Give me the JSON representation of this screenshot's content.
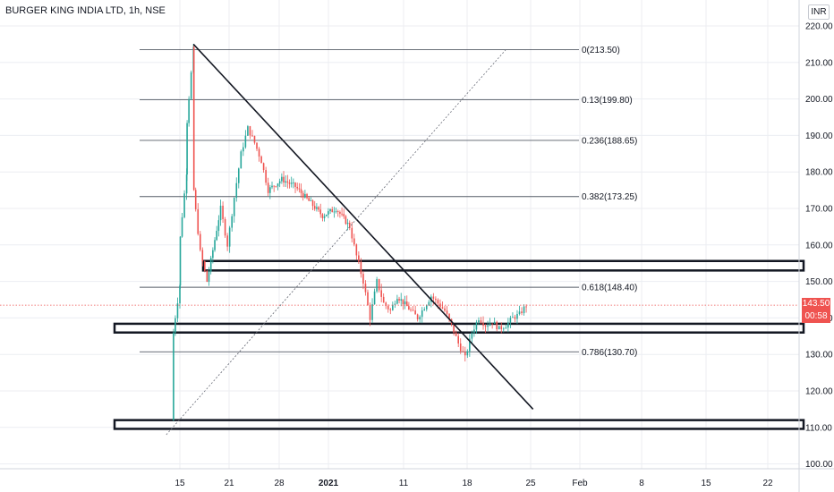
{
  "header": {
    "title": "BURGER KING INDIA LTD, 1h, NSE",
    "currency": "INR"
  },
  "badges": {
    "last_price": "143.50",
    "countdown": "00:58",
    "color": "#ef5350"
  },
  "colors": {
    "up": "#26a69a",
    "down": "#ef5350",
    "lines": "#131722",
    "grid": "#eceef2"
  },
  "chart_data": {
    "type": "candlestick",
    "title": "BURGER KING INDIA LTD, 1h, NSE",
    "ylabel": "INR",
    "ylim": [
      97.5,
      222.5
    ],
    "y_ticks": [
      "220.00",
      "210.00",
      "200.00",
      "190.00",
      "180.00",
      "170.00",
      "160.00",
      "150.00",
      "140.00",
      "130.00",
      "120.00",
      "110.00",
      "100.00"
    ],
    "x_ticks": [
      "15",
      "21",
      "28",
      "2021",
      "11",
      "18",
      "25",
      "Feb",
      "8",
      "15",
      "22"
    ],
    "fibonacci": [
      {
        "label": "0(213.50)",
        "value": 213.5
      },
      {
        "label": "0.13(199.80)",
        "value": 199.8
      },
      {
        "label": "0.236(188.65)",
        "value": 188.65
      },
      {
        "label": "0.382(173.25)",
        "value": 173.25
      },
      {
        "label": "0.618(148.40)",
        "value": 148.4
      },
      {
        "label": "0.786(130.70)",
        "value": 130.7
      }
    ],
    "zones": [
      {
        "from": 153.0,
        "to": 155.6
      },
      {
        "from": 136.0,
        "to": 138.4
      },
      {
        "from": 109.6,
        "to": 112.0
      }
    ],
    "trendline": {
      "from": {
        "x": "Dec 17",
        "y": 215.0
      },
      "to": {
        "x": "Feb 5",
        "y": 115.0
      }
    },
    "fib_diagonal": {
      "from": {
        "x": "Dec 13",
        "y": 108.0
      },
      "to": {
        "x": "Feb 1",
        "y": 213.5
      }
    },
    "price_path": [
      {
        "x": "Dec 14",
        "y": 112
      },
      {
        "x": "Dec 14",
        "y": 136
      },
      {
        "x": "Dec 15",
        "y": 149
      },
      {
        "x": "Dec 15",
        "y": 162
      },
      {
        "x": "Dec 16",
        "y": 180
      },
      {
        "x": "Dec 16",
        "y": 194
      },
      {
        "x": "Dec 17",
        "y": 213.5
      },
      {
        "x": "Dec 17",
        "y": 175
      },
      {
        "x": "Dec 18",
        "y": 158
      },
      {
        "x": "Dec 19",
        "y": 150
      },
      {
        "x": "Dec 21",
        "y": 170
      },
      {
        "x": "Dec 22",
        "y": 160
      },
      {
        "x": "Dec 23",
        "y": 173
      },
      {
        "x": "Dec 24",
        "y": 185
      },
      {
        "x": "Dec 25",
        "y": 192
      },
      {
        "x": "Dec 26",
        "y": 188
      },
      {
        "x": "Dec 27",
        "y": 183
      },
      {
        "x": "Dec 28",
        "y": 175
      },
      {
        "x": "Dec 30",
        "y": 178
      },
      {
        "x": "Jan 1",
        "y": 176
      },
      {
        "x": "Jan 3",
        "y": 172
      },
      {
        "x": "Jan 5",
        "y": 168
      },
      {
        "x": "Jan 7",
        "y": 170
      },
      {
        "x": "Jan 9",
        "y": 165
      },
      {
        "x": "Jan 10",
        "y": 157
      },
      {
        "x": "Jan 11",
        "y": 150
      },
      {
        "x": "Jan 12",
        "y": 140
      },
      {
        "x": "Jan 13",
        "y": 150
      },
      {
        "x": "Jan 14",
        "y": 144
      },
      {
        "x": "Jan 15",
        "y": 142
      },
      {
        "x": "Jan 16",
        "y": 146
      },
      {
        "x": "Jan 18",
        "y": 142
      },
      {
        "x": "Jan 19",
        "y": 140
      },
      {
        "x": "Jan 20",
        "y": 143
      },
      {
        "x": "Jan 21",
        "y": 146
      },
      {
        "x": "Jan 22",
        "y": 144
      },
      {
        "x": "Jan 23",
        "y": 142
      },
      {
        "x": "Jan 24",
        "y": 138
      },
      {
        "x": "Jan 25",
        "y": 133
      },
      {
        "x": "Jan 26",
        "y": 129
      },
      {
        "x": "Jan 27",
        "y": 136
      },
      {
        "x": "Jan 28",
        "y": 140
      },
      {
        "x": "Jan 29",
        "y": 138
      },
      {
        "x": "Jan 30",
        "y": 139
      },
      {
        "x": "Jan 31",
        "y": 137
      },
      {
        "x": "Feb 1",
        "y": 138
      },
      {
        "x": "Feb 2",
        "y": 140
      },
      {
        "x": "Feb 3",
        "y": 141
      },
      {
        "x": "Feb 4",
        "y": 143.5
      }
    ],
    "last_price": 143.5
  }
}
